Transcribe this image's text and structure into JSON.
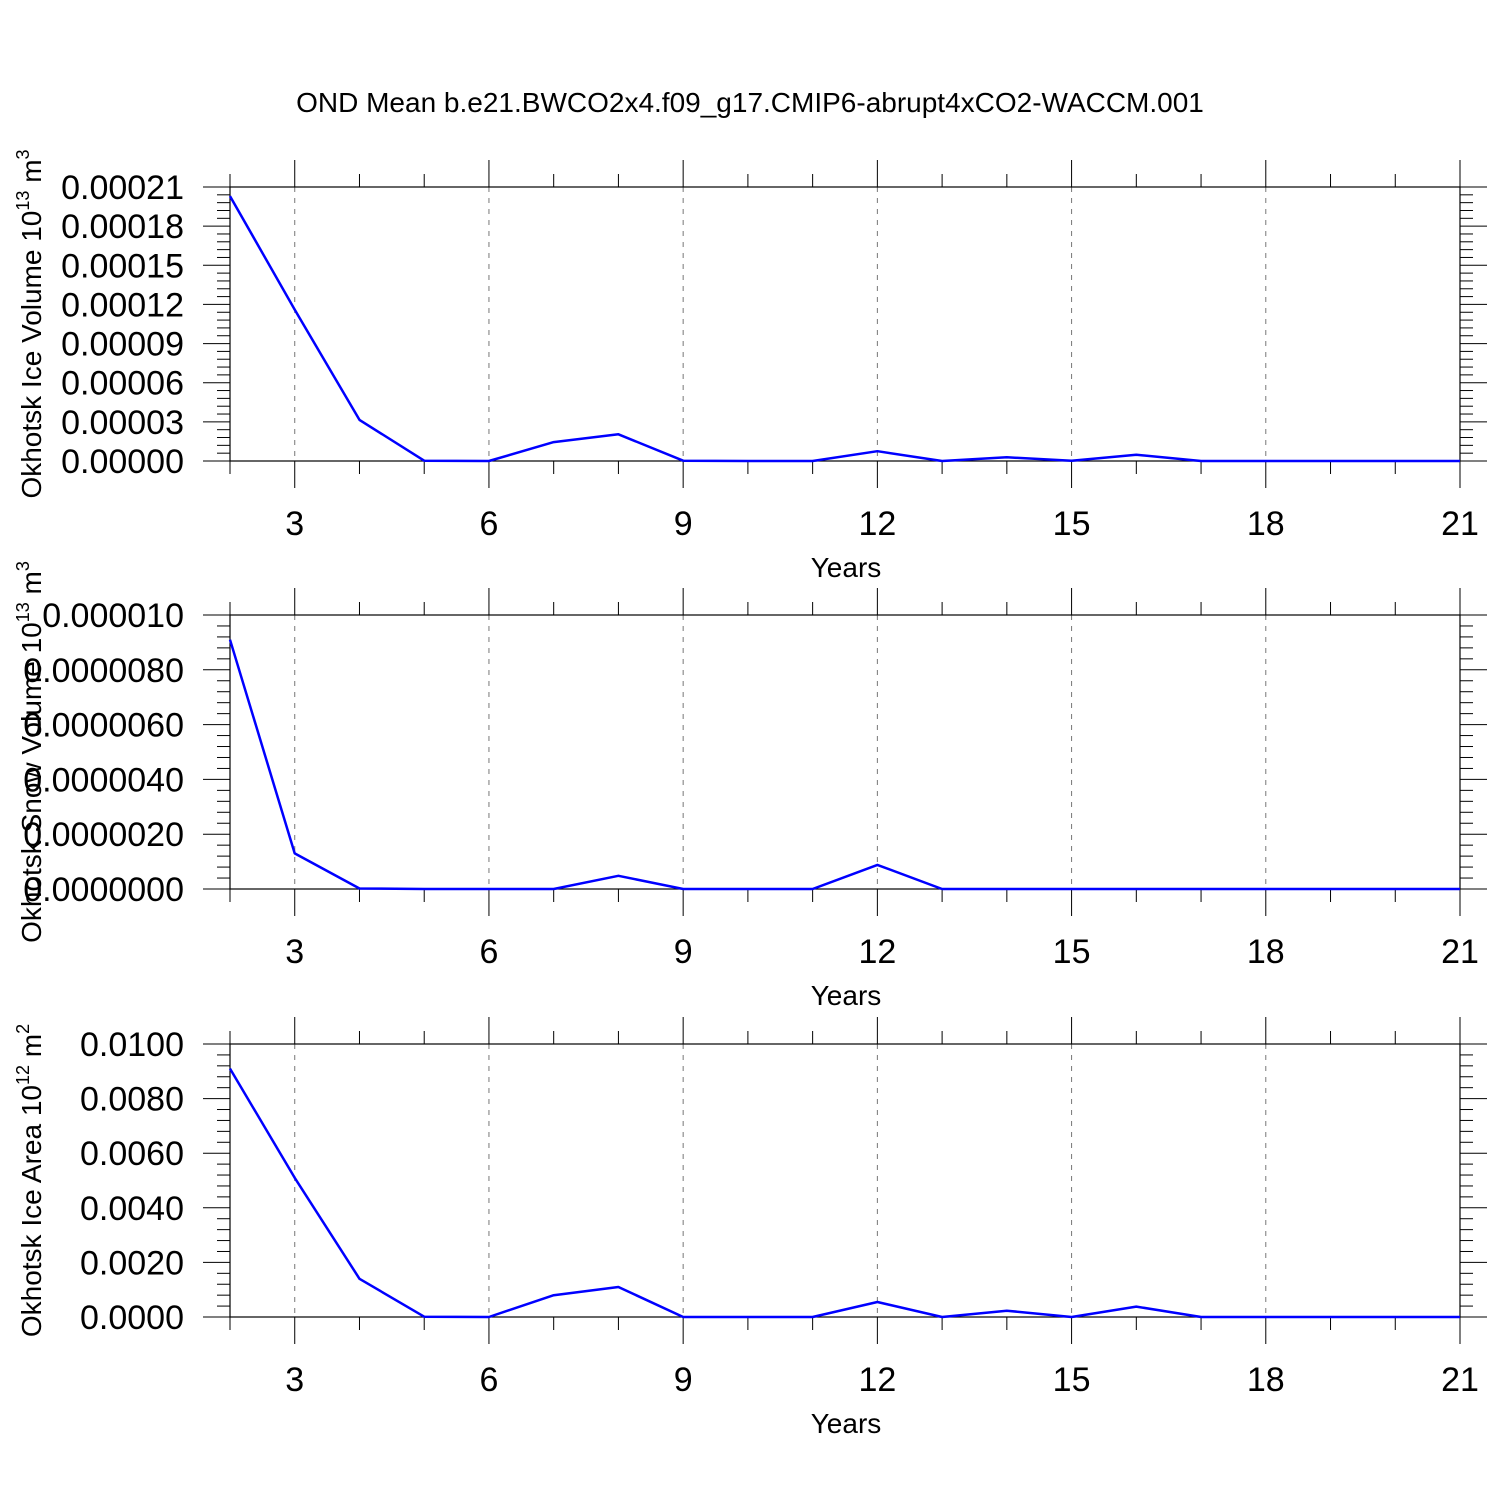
{
  "title": "OND Mean b.e21.BWCO2x4.f09_g17.CMIP6-abrupt4xCO2-WACCM.001",
  "line_color": "#0000ff",
  "chart_data": [
    {
      "type": "line",
      "title": "OND Mean b.e21.BWCO2x4.f09_g17.CMIP6-abrupt4xCO2-WACCM.001",
      "xlabel": "Years",
      "ylabel_text": "Okhotsk Ice Volume 10",
      "ylabel_sup": "13",
      "ylabel_unit": "m",
      "ylabel_unit_sup": "3",
      "xlim": [
        2,
        21
      ],
      "ylim": [
        0,
        0.00021
      ],
      "xticks": [
        3,
        6,
        9,
        12,
        15,
        18,
        21
      ],
      "yticks": [
        0,
        3e-05,
        6e-05,
        9e-05,
        0.00012,
        0.00015,
        0.00018,
        0.00021
      ],
      "ytick_labels": [
        "0.00000",
        "0.00003",
        "0.00006",
        "0.00009",
        "0.00012",
        "0.00015",
        "0.00018",
        "0.00021"
      ],
      "grid": true,
      "x": [
        2,
        3,
        4,
        5,
        6,
        7,
        8,
        9,
        10,
        11,
        12,
        13,
        14,
        15,
        16,
        17,
        18,
        19,
        20,
        21
      ],
      "series": [
        {
          "values": [
            0.000203,
            0.000116,
            3.15e-05,
            2e-07,
            0.0,
            1.45e-05,
            2.05e-05,
            2e-07,
            0.0,
            0.0,
            7.5e-06,
            0.0,
            2.8e-06,
            2e-07,
            4.8e-06,
            0.0,
            0.0,
            0.0,
            0.0,
            0.0
          ]
        }
      ]
    },
    {
      "type": "line",
      "xlabel": "Years",
      "ylabel_text": "Okhotsk Snow Volume 10",
      "ylabel_sup": "13",
      "ylabel_unit": "m",
      "ylabel_unit_sup": "3",
      "xlim": [
        2,
        21
      ],
      "ylim": [
        0,
        1e-05
      ],
      "xticks": [
        3,
        6,
        9,
        12,
        15,
        18,
        21
      ],
      "yticks": [
        0,
        2e-06,
        4e-06,
        6e-06,
        8e-06,
        1e-05
      ],
      "ytick_labels": [
        "0.0000000",
        "0.0000020",
        "0.0000040",
        "0.0000060",
        "0.0000080",
        "0.000010"
      ],
      "grid": true,
      "x": [
        2,
        3,
        4,
        5,
        6,
        7,
        8,
        9,
        10,
        11,
        12,
        13,
        14,
        15,
        16,
        17,
        18,
        19,
        20,
        21
      ],
      "series": [
        {
          "values": [
            9.1e-06,
            1.3e-06,
            2e-08,
            0.0,
            0.0,
            0.0,
            4.8e-07,
            0.0,
            0.0,
            0.0,
            8.8e-07,
            0.0,
            0.0,
            0.0,
            0.0,
            0.0,
            0.0,
            0.0,
            0.0,
            0.0
          ]
        }
      ]
    },
    {
      "type": "line",
      "xlabel": "Years",
      "ylabel_text": "Okhotsk Ice Area 10",
      "ylabel_sup": "12",
      "ylabel_unit": "m",
      "ylabel_unit_sup": "2",
      "xlim": [
        2,
        21
      ],
      "ylim": [
        0,
        0.01
      ],
      "xticks": [
        3,
        6,
        9,
        12,
        15,
        18,
        21
      ],
      "yticks": [
        0,
        0.002,
        0.004,
        0.006,
        0.008,
        0.01
      ],
      "ytick_labels": [
        "0.0000",
        "0.0020",
        "0.0040",
        "0.0060",
        "0.0080",
        "0.0100"
      ],
      "grid": true,
      "x": [
        2,
        3,
        4,
        5,
        6,
        7,
        8,
        9,
        10,
        11,
        12,
        13,
        14,
        15,
        16,
        17,
        18,
        19,
        20,
        21
      ],
      "series": [
        {
          "values": [
            0.0091,
            0.0051,
            0.0014,
            1e-05,
            0.0,
            0.0008,
            0.0011,
            0.0,
            0.0,
            0.0,
            0.00055,
            0.0,
            0.00023,
            0.0,
            0.00038,
            0.0,
            0.0,
            0.0,
            0.0,
            0.0
          ]
        }
      ]
    }
  ]
}
